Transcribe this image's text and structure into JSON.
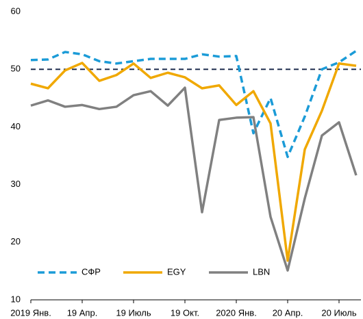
{
  "chart_data": {
    "type": "line",
    "categories": [
      "2019 Янв.",
      null,
      null,
      "19 Апр.",
      null,
      null,
      "19 Июль",
      null,
      null,
      "19 Окт.",
      null,
      null,
      "2020 Янв.",
      null,
      null,
      "20 Апр.",
      null,
      null,
      "20 Июль",
      null
    ],
    "series": [
      {
        "name": "СФР",
        "color": "#1b9bd7",
        "dashed": true,
        "values": [
          51.6,
          51.7,
          53.0,
          52.6,
          51.4,
          51.0,
          51.4,
          51.8,
          51.8,
          51.8,
          52.6,
          52.2,
          52.3,
          38.9,
          45.0,
          34.8,
          41.8,
          50.0,
          51.2,
          53.2
        ]
      },
      {
        "name": "EGY",
        "color": "#f0a800",
        "dashed": false,
        "values": [
          47.5,
          46.7,
          49.8,
          51.1,
          48.0,
          49.0,
          51.0,
          48.5,
          49.4,
          48.6,
          46.7,
          47.2,
          43.8,
          46.2,
          40.6,
          16.8,
          36.1,
          42.8,
          51.0,
          50.6
        ]
      },
      {
        "name": "LBN",
        "color": "#808080",
        "dashed": false,
        "values": [
          43.7,
          44.6,
          43.5,
          43.8,
          43.1,
          43.5,
          45.5,
          46.2,
          43.7,
          46.8,
          25.2,
          41.2,
          41.6,
          41.7,
          24.4,
          15.1,
          27.6,
          38.5,
          40.8,
          31.6
        ]
      }
    ],
    "reference_line": {
      "value": 50,
      "color": "#1f2d4e",
      "dashed": true
    },
    "ylim": [
      10,
      60
    ],
    "yticks": [
      10,
      20,
      30,
      40,
      50,
      60
    ],
    "grid": false,
    "legend": "bottom-left"
  }
}
